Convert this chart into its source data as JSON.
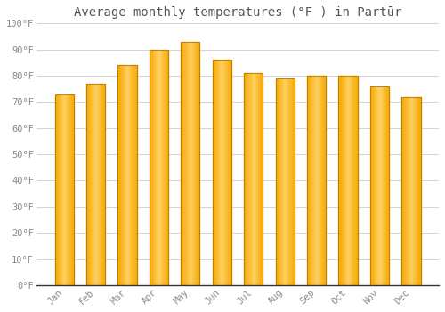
{
  "title": "Average monthly temperatures (°F ) in Partūr",
  "months": [
    "Jan",
    "Feb",
    "Mar",
    "Apr",
    "May",
    "Jun",
    "Jul",
    "Aug",
    "Sep",
    "Oct",
    "Nov",
    "Dec"
  ],
  "values": [
    73,
    77,
    84,
    90,
    93,
    86,
    81,
    79,
    80,
    80,
    76,
    72
  ],
  "bar_color_left": "#F5A800",
  "bar_color_center": "#FFD060",
  "bar_color_right": "#E89000",
  "bar_edge_color": "#B87800",
  "ylim": [
    0,
    100
  ],
  "yticks": [
    0,
    10,
    20,
    30,
    40,
    50,
    60,
    70,
    80,
    90,
    100
  ],
  "ytick_labels": [
    "0°F",
    "10°F",
    "20°F",
    "30°F",
    "40°F",
    "50°F",
    "60°F",
    "70°F",
    "80°F",
    "90°F",
    "100°F"
  ],
  "background_color": "#FFFFFF",
  "grid_color": "#CCCCCC",
  "font_color": "#888888",
  "title_color": "#555555",
  "title_fontsize": 10,
  "tick_fontsize": 7.5,
  "bar_width": 0.6
}
